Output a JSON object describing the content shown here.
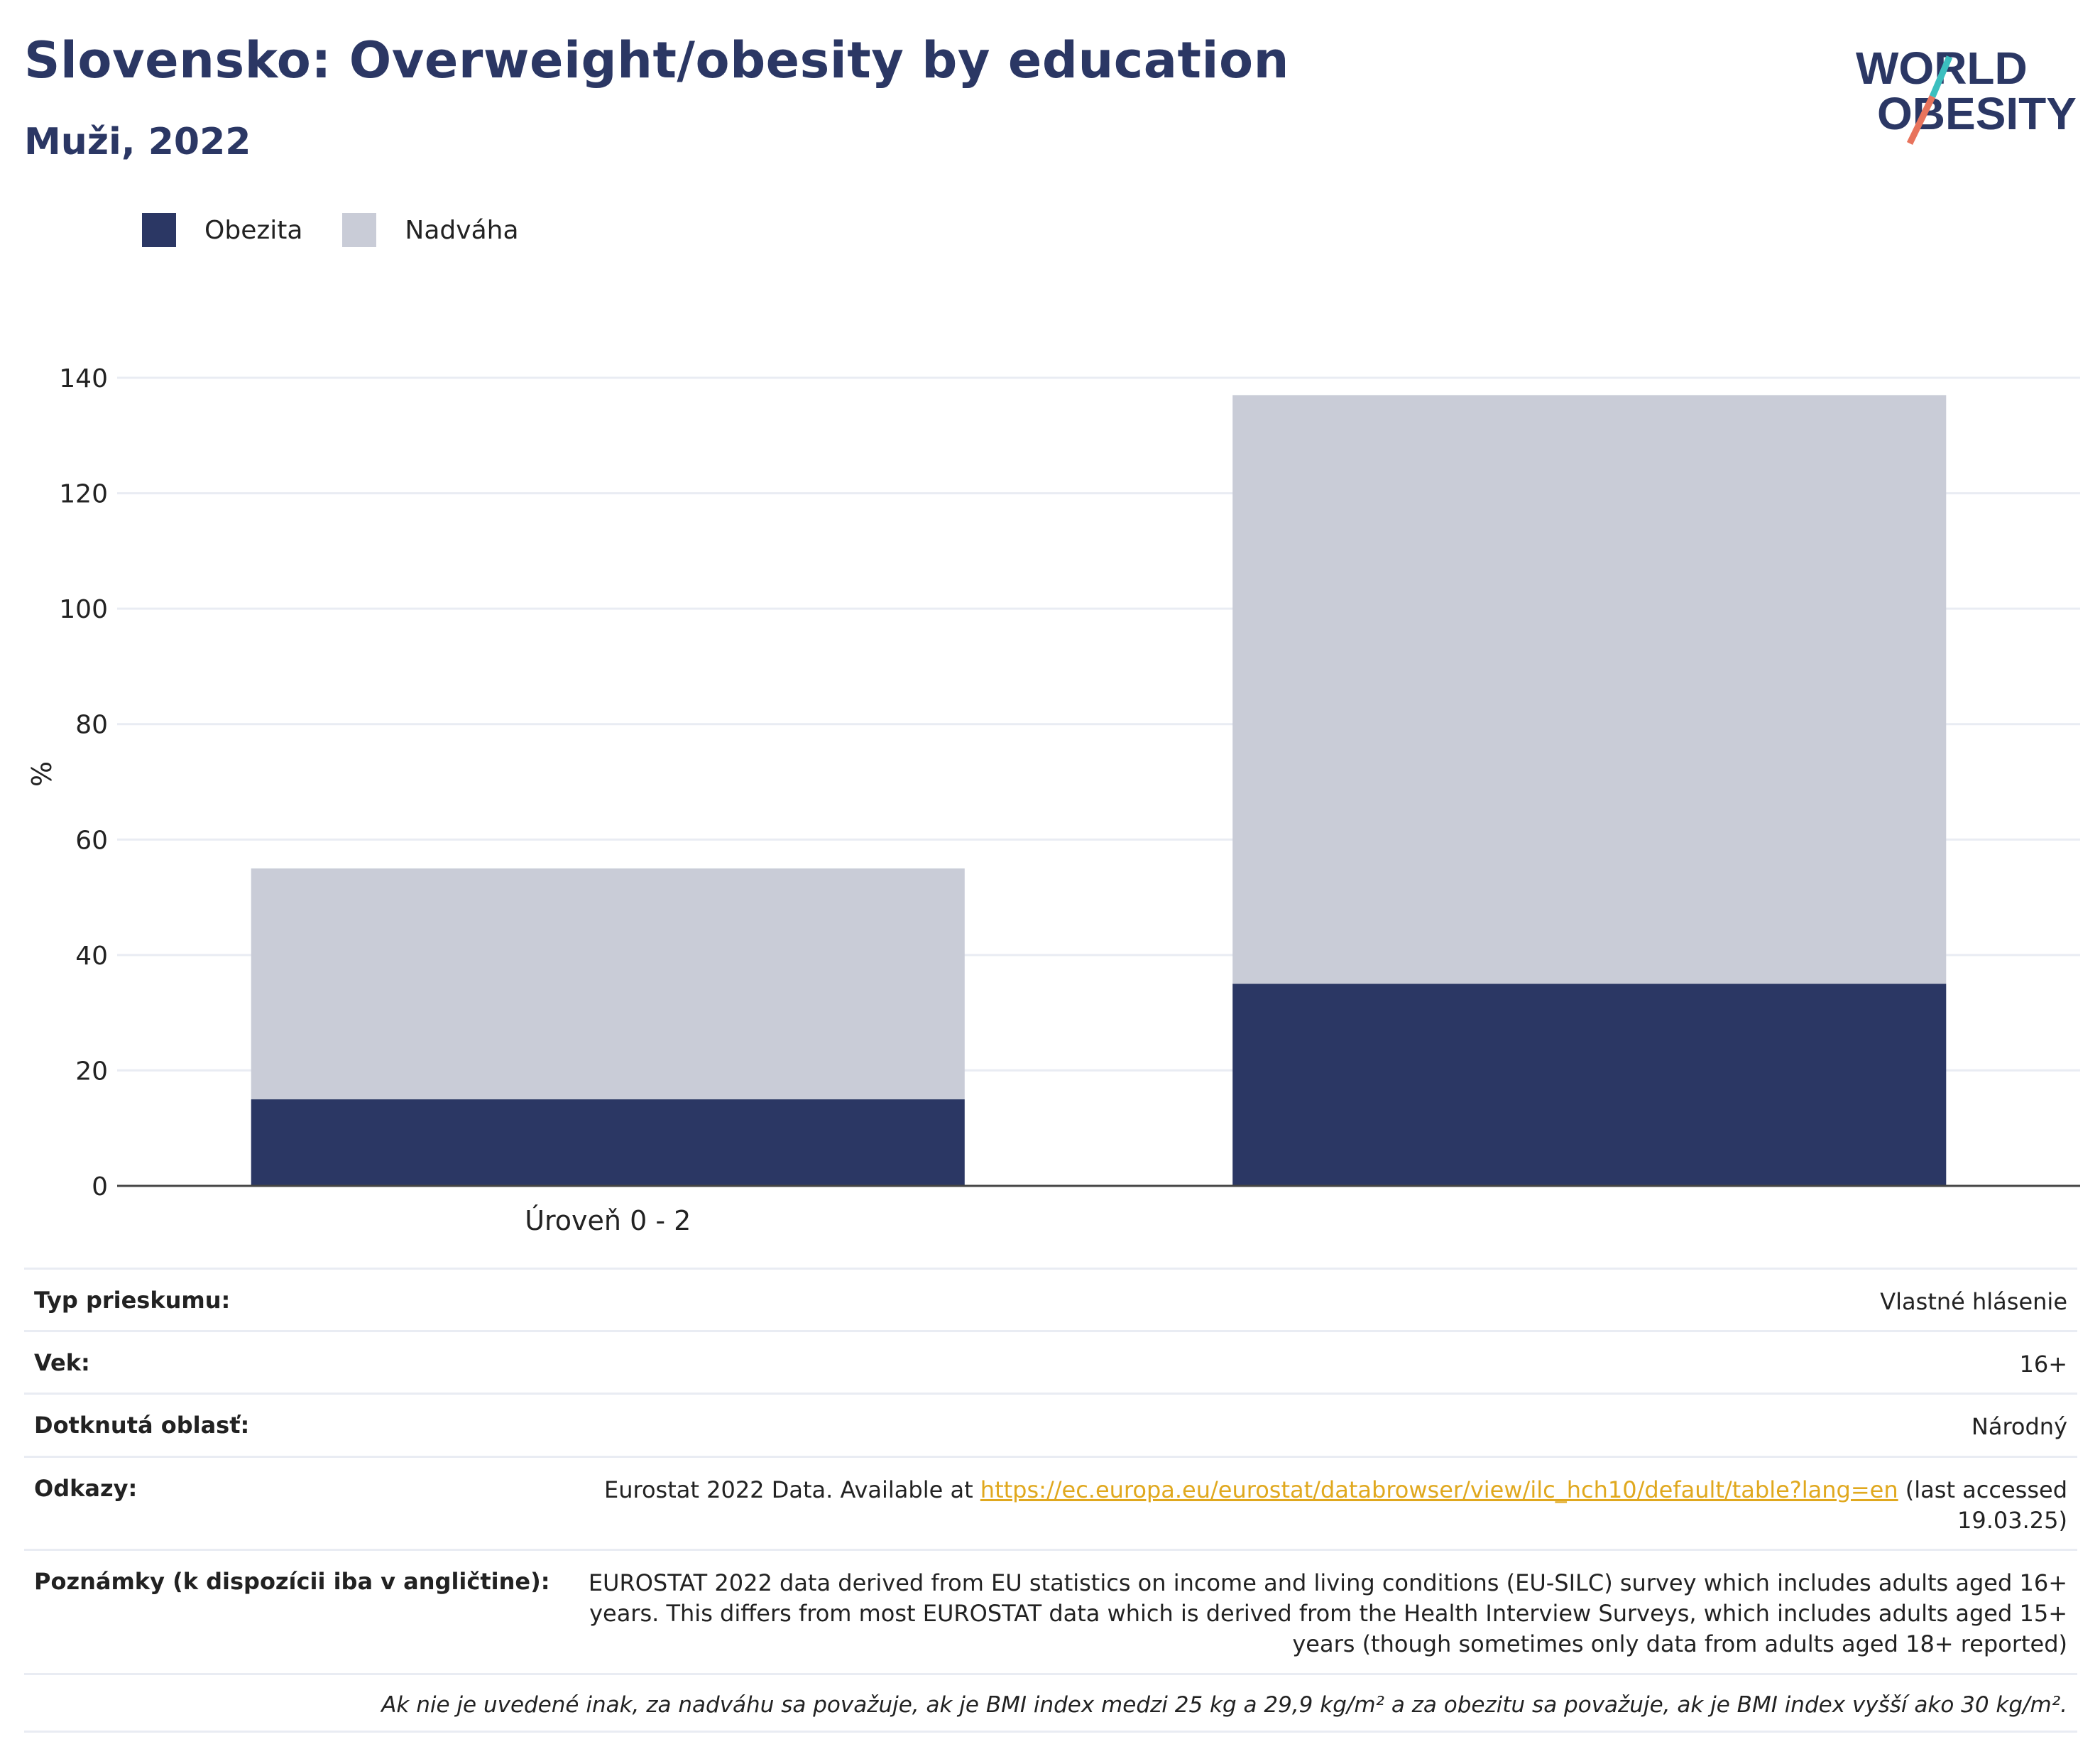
{
  "header": {
    "title": "Slovensko: Overweight/obesity by education",
    "subtitle": "Muži, 2022",
    "logo_line1": "WORLD",
    "logo_line2": "OBESITY"
  },
  "colors": {
    "obesity": "#2b3764",
    "overweight": "#c9ccd7",
    "grid": "#e9ecf3",
    "link": "#e0a81e",
    "logo_teal": "#3bbfbf",
    "logo_coral": "#e8735c"
  },
  "chart_data": {
    "type": "bar",
    "stacked": true,
    "categories": [
      "Úroveň 0 - 2",
      ""
    ],
    "series": [
      {
        "name": "Obezita",
        "values": [
          15,
          35
        ]
      },
      {
        "name": "Nadváha",
        "values": [
          40,
          102
        ]
      }
    ],
    "ylabel": "%",
    "ylim": [
      0,
      140
    ],
    "yticks": [
      0,
      20,
      40,
      60,
      80,
      100,
      120,
      140
    ],
    "grid": true,
    "legend_position": "top-left"
  },
  "info": {
    "survey_type_label": "Typ prieskumu:",
    "survey_type_value": "Vlastné hlásenie",
    "age_label": "Vek:",
    "age_value": "16+",
    "area_label": "Dotknutá oblasť:",
    "area_value": "Národný",
    "refs_label": "Odkazy:",
    "refs_prefix": "Eurostat 2022 Data. Available at ",
    "refs_link": "https://ec.europa.eu/eurostat/databrowser/view/ilc_hch10/default/table?lang=en",
    "refs_suffix": " (last accessed 19.03.25)",
    "notes_label": "Poznámky (k dispozícii iba v angličtine):",
    "notes_value": "EUROSTAT 2022 data derived from EU statistics on income and living conditions (EU-SILC) survey which includes adults aged 16+ years. This differs from most EUROSTAT data which is derived from the Health Interview Surveys, which includes adults aged 15+ years (though sometimes only data from adults aged 18+ reported)",
    "footnote": "Ak nie je uvedené inak, za nadváhu sa považuje, ak je BMI index medzi 25 kg a 29,9 kg/m² a za obezitu sa považuje, ak je BMI index vyšší ako 30 kg/m²."
  }
}
